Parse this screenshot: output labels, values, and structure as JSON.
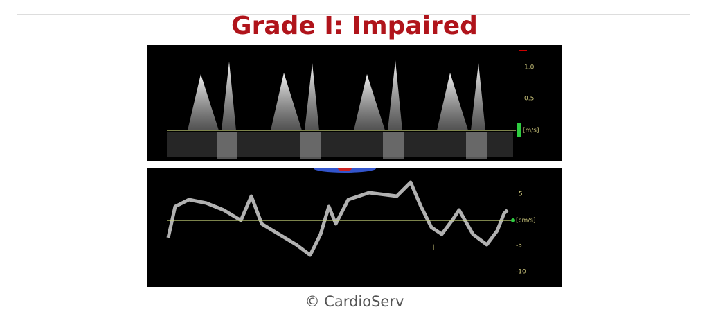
{
  "title": "Grade I: Impaired",
  "panels": [
    {
      "scale_labels": [
        "1.0",
        "0.5",
        "[m/s]"
      ]
    },
    {
      "scale_labels": [
        "5",
        "[cm/s]",
        "-5",
        "-10"
      ]
    }
  ],
  "caption": "© CardioServ"
}
